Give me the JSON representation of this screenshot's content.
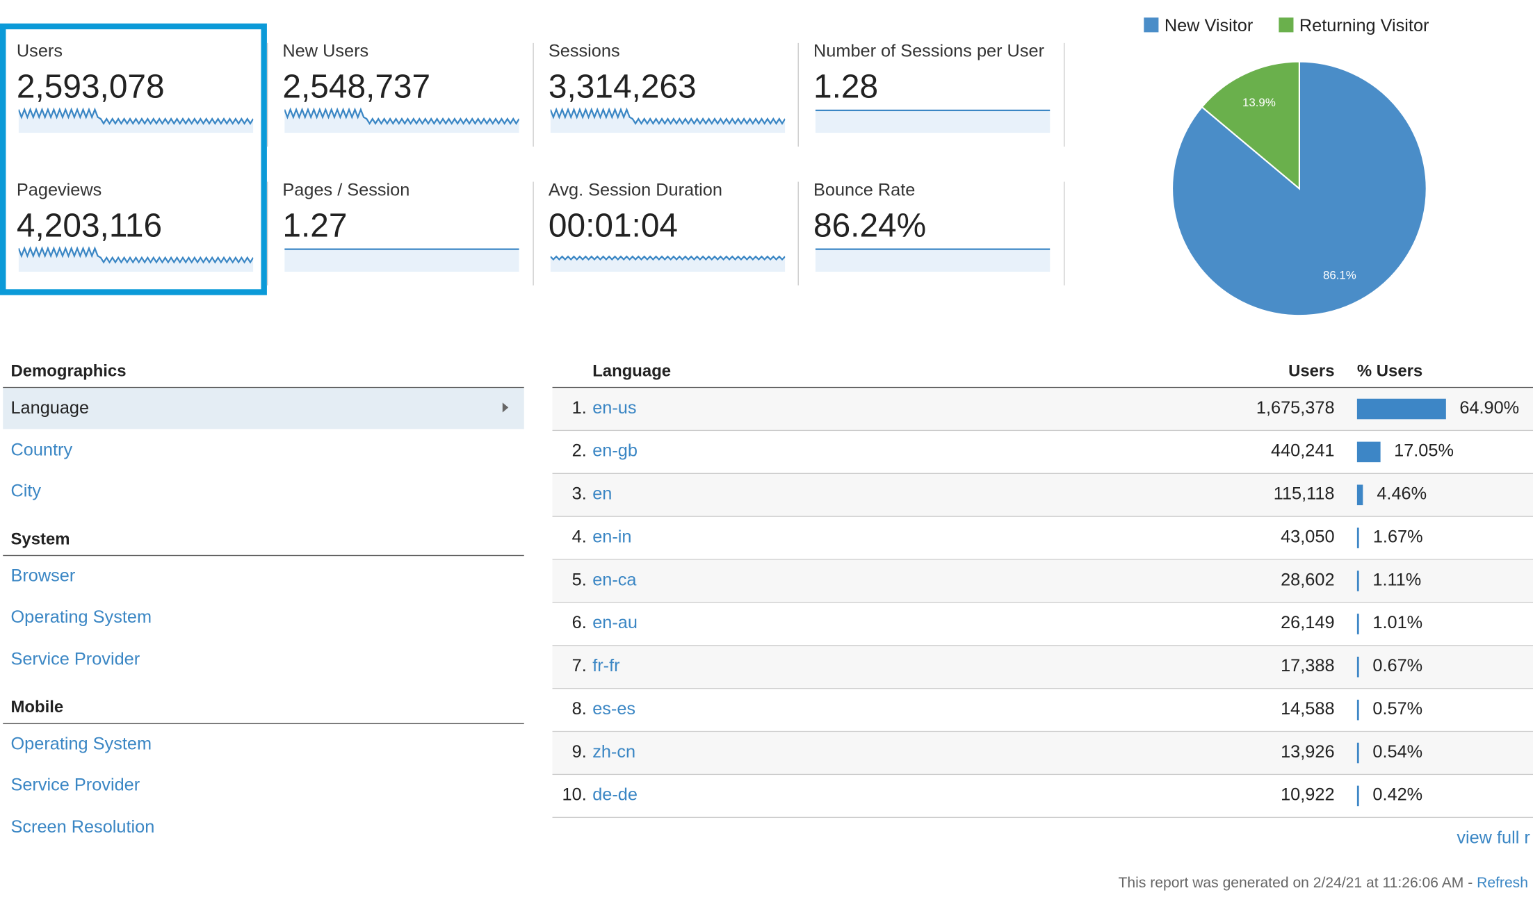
{
  "metrics": [
    {
      "label": "Users",
      "value": "2,593,078"
    },
    {
      "label": "New Users",
      "value": "2,548,737"
    },
    {
      "label": "Sessions",
      "value": "3,314,263"
    },
    {
      "label": "Number of Sessions per User",
      "value": "1.28"
    },
    {
      "label": "Pageviews",
      "value": "4,203,116"
    },
    {
      "label": "Pages / Session",
      "value": "1.27"
    },
    {
      "label": "Avg. Session Duration",
      "value": "00:01:04"
    },
    {
      "label": "Bounce Rate",
      "value": "86.24%"
    }
  ],
  "chart_data": {
    "type": "pie",
    "categories": [
      "New Visitor",
      "Returning Visitor"
    ],
    "values": [
      86.1,
      13.9
    ],
    "value_labels": [
      "86.1%",
      "13.9%"
    ],
    "colors": [
      "#4a8dc8",
      "#6ab04c"
    ]
  },
  "nav": [
    {
      "title": "Demographics",
      "items": [
        "Language",
        "Country",
        "City"
      ]
    },
    {
      "title": "System",
      "items": [
        "Browser",
        "Operating System",
        "Service Provider"
      ]
    },
    {
      "title": "Mobile",
      "items": [
        "Operating System",
        "Service Provider",
        "Screen Resolution"
      ]
    }
  ],
  "table": {
    "headers": [
      "Language",
      "Users",
      "% Users"
    ],
    "rows": [
      {
        "rank": "1.",
        "language": "en-us",
        "users": "1,675,378",
        "percent": 64.9,
        "percent_label": "64.90%"
      },
      {
        "rank": "2.",
        "language": "en-gb",
        "users": "440,241",
        "percent": 17.05,
        "percent_label": "17.05%"
      },
      {
        "rank": "3.",
        "language": "en",
        "users": "115,118",
        "percent": 4.46,
        "percent_label": "4.46%"
      },
      {
        "rank": "4.",
        "language": "en-in",
        "users": "43,050",
        "percent": 1.67,
        "percent_label": "1.67%"
      },
      {
        "rank": "5.",
        "language": "en-ca",
        "users": "28,602",
        "percent": 1.11,
        "percent_label": "1.11%"
      },
      {
        "rank": "6.",
        "language": "en-au",
        "users": "26,149",
        "percent": 1.01,
        "percent_label": "1.01%"
      },
      {
        "rank": "7.",
        "language": "fr-fr",
        "users": "17,388",
        "percent": 0.67,
        "percent_label": "0.67%"
      },
      {
        "rank": "8.",
        "language": "es-es",
        "users": "14,588",
        "percent": 0.57,
        "percent_label": "0.57%"
      },
      {
        "rank": "9.",
        "language": "zh-cn",
        "users": "13,926",
        "percent": 0.54,
        "percent_label": "0.54%"
      },
      {
        "rank": "10.",
        "language": "de-de",
        "users": "10,922",
        "percent": 0.42,
        "percent_label": "0.42%"
      }
    ]
  },
  "view_full": "view full r",
  "footer": {
    "text": "This report was generated on 2/24/21 at 11:26:06 AM - ",
    "link": "Refresh"
  }
}
